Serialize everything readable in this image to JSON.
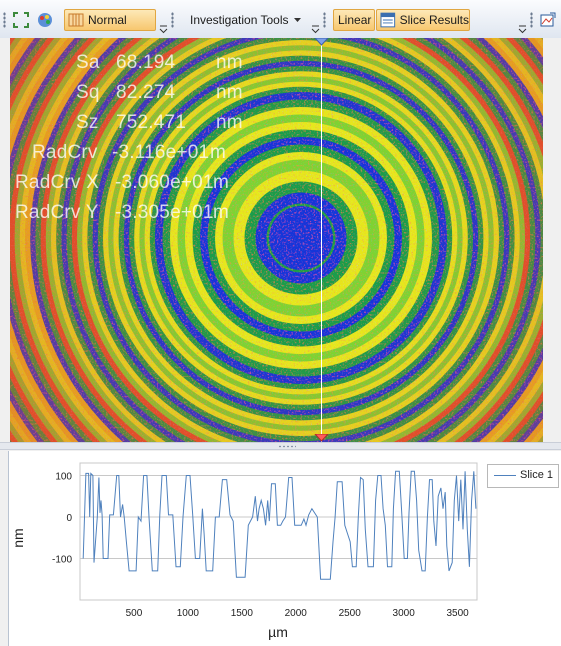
{
  "toolbar": {
    "view_mode_label": "Normal",
    "investigation_tools_label": "Investigation Tools",
    "linear_label": "Linear",
    "slice_results_label": "Slice Results"
  },
  "statistics": [
    {
      "name": "Sa",
      "value": "68.194",
      "unit": "nm"
    },
    {
      "name": "Sq",
      "value": "82.274",
      "unit": "nm"
    },
    {
      "name": "Sz",
      "value": "752.471",
      "unit": "nm"
    },
    {
      "name": "RadCrv",
      "value": "-3.116e+01",
      "unit": "m"
    },
    {
      "name": "RadCrv X",
      "value": "-3.060e+01",
      "unit": "m"
    },
    {
      "name": "RadCrv Y",
      "value": "-3.305e+01",
      "unit": "m"
    }
  ],
  "colors": {
    "fringe_palette": [
      "#1436d8",
      "#1f9c4a",
      "#7ed332",
      "#e6e81c",
      "#e8c21a",
      "#e0502a"
    ],
    "series_line": "#4f81bd",
    "slice_marker": "#ffffff"
  },
  "chart_data": {
    "type": "line",
    "xlabel": "µm",
    "ylabel": "nm",
    "xlim": [
      0,
      3680
    ],
    "ylim": [
      -200,
      130
    ],
    "x_ticks": [
      500,
      1000,
      1500,
      2000,
      2500,
      3000,
      3500
    ],
    "y_ticks": [
      100,
      0,
      -100
    ],
    "legend_position": "top-right",
    "series": [
      {
        "name": "Slice 1",
        "points": [
          [
            30,
            -100
          ],
          [
            45,
            30
          ],
          [
            55,
            105
          ],
          [
            80,
            105
          ],
          [
            90,
            0
          ],
          [
            100,
            105
          ],
          [
            120,
            100
          ],
          [
            130,
            -110
          ],
          [
            160,
            0
          ],
          [
            175,
            95
          ],
          [
            185,
            10
          ],
          [
            195,
            40
          ],
          [
            205,
            5
          ],
          [
            215,
            -100
          ],
          [
            260,
            -100
          ],
          [
            275,
            5
          ],
          [
            310,
            5
          ],
          [
            340,
            100
          ],
          [
            360,
            100
          ],
          [
            375,
            0
          ],
          [
            395,
            30
          ],
          [
            410,
            0
          ],
          [
            430,
            -60
          ],
          [
            455,
            -130
          ],
          [
            520,
            -130
          ],
          [
            540,
            0
          ],
          [
            565,
            -10
          ],
          [
            590,
            100
          ],
          [
            620,
            100
          ],
          [
            640,
            0
          ],
          [
            670,
            -130
          ],
          [
            720,
            -130
          ],
          [
            740,
            5
          ],
          [
            760,
            100
          ],
          [
            800,
            100
          ],
          [
            820,
            5
          ],
          [
            860,
            5
          ],
          [
            890,
            -120
          ],
          [
            930,
            -120
          ],
          [
            955,
            0
          ],
          [
            985,
            100
          ],
          [
            1020,
            100
          ],
          [
            1045,
            5
          ],
          [
            1070,
            -100
          ],
          [
            1110,
            -100
          ],
          [
            1135,
            20
          ],
          [
            1150,
            -40
          ],
          [
            1170,
            -130
          ],
          [
            1230,
            -130
          ],
          [
            1255,
            0
          ],
          [
            1290,
            0
          ],
          [
            1320,
            90
          ],
          [
            1360,
            90
          ],
          [
            1390,
            5
          ],
          [
            1420,
            -10
          ],
          [
            1450,
            -145
          ],
          [
            1530,
            -145
          ],
          [
            1560,
            -20
          ],
          [
            1600,
            0
          ],
          [
            1625,
            50
          ],
          [
            1645,
            -10
          ],
          [
            1660,
            20
          ],
          [
            1680,
            40
          ],
          [
            1700,
            20
          ],
          [
            1720,
            -20
          ],
          [
            1740,
            40
          ],
          [
            1755,
            -10
          ],
          [
            1775,
            80
          ],
          [
            1810,
            80
          ],
          [
            1830,
            -20
          ],
          [
            1860,
            -20
          ],
          [
            1880,
            -10
          ],
          [
            1905,
            0
          ],
          [
            1935,
            95
          ],
          [
            1965,
            95
          ],
          [
            1990,
            -20
          ],
          [
            2050,
            -20
          ],
          [
            2075,
            -5
          ],
          [
            2095,
            -20
          ],
          [
            2120,
            5
          ],
          [
            2150,
            20
          ],
          [
            2200,
            0
          ],
          [
            2230,
            -150
          ],
          [
            2320,
            -150
          ],
          [
            2345,
            -60
          ],
          [
            2365,
            0
          ],
          [
            2385,
            85
          ],
          [
            2430,
            85
          ],
          [
            2455,
            -20
          ],
          [
            2480,
            -40
          ],
          [
            2505,
            -60
          ],
          [
            2525,
            -120
          ],
          [
            2560,
            -120
          ],
          [
            2580,
            0
          ],
          [
            2600,
            95
          ],
          [
            2625,
            90
          ],
          [
            2645,
            -30
          ],
          [
            2670,
            -120
          ],
          [
            2720,
            -120
          ],
          [
            2740,
            40
          ],
          [
            2760,
            100
          ],
          [
            2790,
            100
          ],
          [
            2810,
            20
          ],
          [
            2830,
            -20
          ],
          [
            2850,
            -120
          ],
          [
            2890,
            -120
          ],
          [
            2905,
            20
          ],
          [
            2925,
            110
          ],
          [
            2960,
            110
          ],
          [
            2980,
            20
          ],
          [
            3005,
            -100
          ],
          [
            3035,
            -100
          ],
          [
            3050,
            10
          ],
          [
            3070,
            110
          ],
          [
            3100,
            110
          ],
          [
            3120,
            40
          ],
          [
            3140,
            -80
          ],
          [
            3170,
            -130
          ],
          [
            3200,
            -130
          ],
          [
            3220,
            0
          ],
          [
            3240,
            90
          ],
          [
            3265,
            90
          ],
          [
            3280,
            -10
          ],
          [
            3300,
            -70
          ],
          [
            3320,
            50
          ],
          [
            3345,
            70
          ],
          [
            3365,
            20
          ],
          [
            3385,
            60
          ],
          [
            3400,
            -70
          ],
          [
            3420,
            -130
          ],
          [
            3450,
            -110
          ],
          [
            3470,
            40
          ],
          [
            3490,
            100
          ],
          [
            3510,
            -10
          ],
          [
            3530,
            90
          ],
          [
            3550,
            -30
          ],
          [
            3570,
            110
          ],
          [
            3590,
            -30
          ],
          [
            3610,
            -120
          ],
          [
            3630,
            40
          ],
          [
            3650,
            110
          ],
          [
            3670,
            20
          ]
        ]
      }
    ]
  }
}
